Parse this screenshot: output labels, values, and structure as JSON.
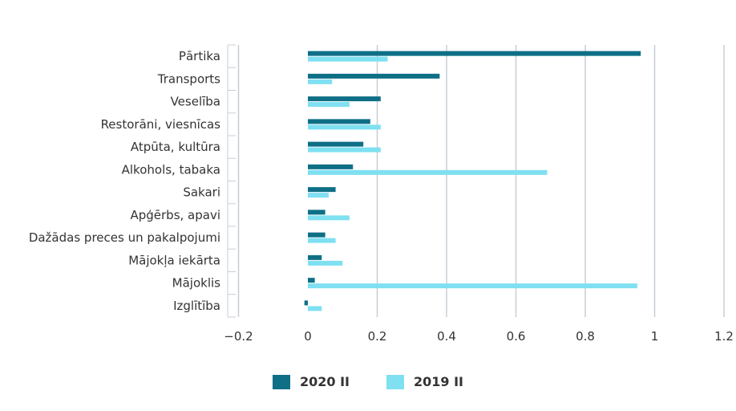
{
  "chart_data": {
    "type": "bar",
    "orientation": "horizontal",
    "categories": [
      "Pārtika",
      "Transports",
      "Veselība",
      "Restorāni, viesnīcas",
      "Atpūta, kultūra",
      "Alkohols, tabaka",
      "Sakari",
      "Apģērbs, apavi",
      "Dažādas preces un pakalpojumi",
      "Mājokļa iekārta",
      "Mājoklis",
      "Izglītība"
    ],
    "series": [
      {
        "name": "2020 II",
        "color": "#0e6f86",
        "values": [
          0.96,
          0.38,
          0.21,
          0.18,
          0.16,
          0.13,
          0.08,
          0.05,
          0.05,
          0.04,
          0.02,
          -0.01
        ]
      },
      {
        "name": "2019 II",
        "color": "#7fe0f1",
        "values": [
          0.23,
          0.07,
          0.12,
          0.21,
          0.21,
          0.69,
          0.06,
          0.12,
          0.08,
          0.1,
          0.95,
          0.04
        ]
      }
    ],
    "xlim": [
      -0.2,
      1.2
    ],
    "xticks": [
      "−0.2",
      "0",
      "0.2",
      "0.4",
      "0.6",
      "0.8",
      "1",
      "1.2"
    ],
    "grid": true,
    "legend_position": "bottom"
  }
}
